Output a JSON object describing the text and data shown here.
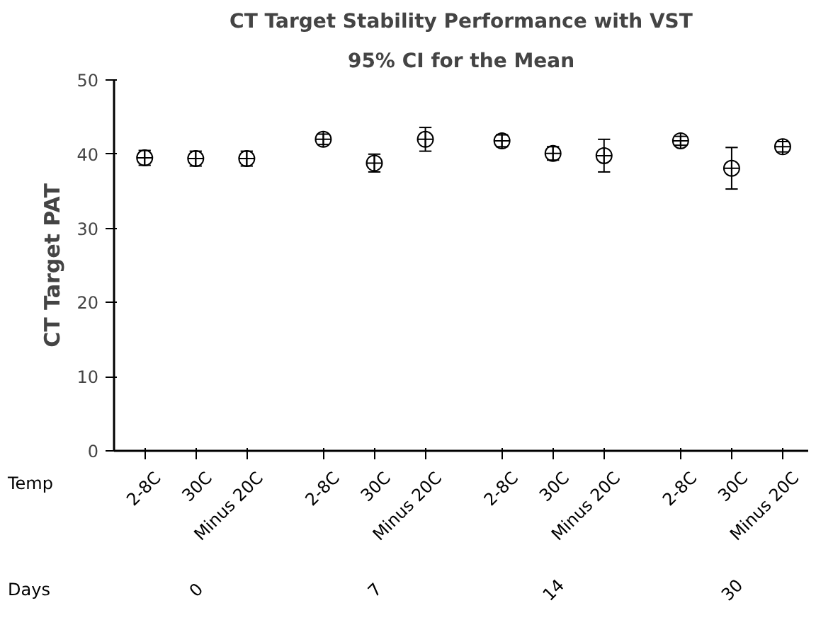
{
  "chart_data": {
    "type": "scatter",
    "title": "CT Target Stability Performance with VST",
    "subtitle": "95% CI for the Mean",
    "ylabel": "CT Target PAT",
    "categories": [
      "2-8C",
      "30C",
      "Minus 20C",
      "2-8C",
      "30C",
      "Minus 20C",
      "2-8C",
      "30C",
      "Minus 20C",
      "2-8C",
      "30C",
      "Minus 20C"
    ],
    "values": [
      39.5,
      39.4,
      39.4,
      42.0,
      38.8,
      42.0,
      41.8,
      40.1,
      39.8,
      41.8,
      38.1,
      41.0
    ],
    "errors": [
      1.0,
      1.0,
      1.0,
      0.7,
      1.2,
      1.6,
      0.8,
      0.9,
      2.2,
      0.6,
      2.8,
      0.7
    ],
    "color": "#000000",
    "marker": "circle",
    "ylim": [
      0,
      50
    ],
    "yticks": [
      0,
      10,
      20,
      30,
      40,
      50
    ],
    "grid": false,
    "annotations": [
      "Temp",
      "Days",
      "0",
      "7",
      "14",
      "30"
    ]
  }
}
